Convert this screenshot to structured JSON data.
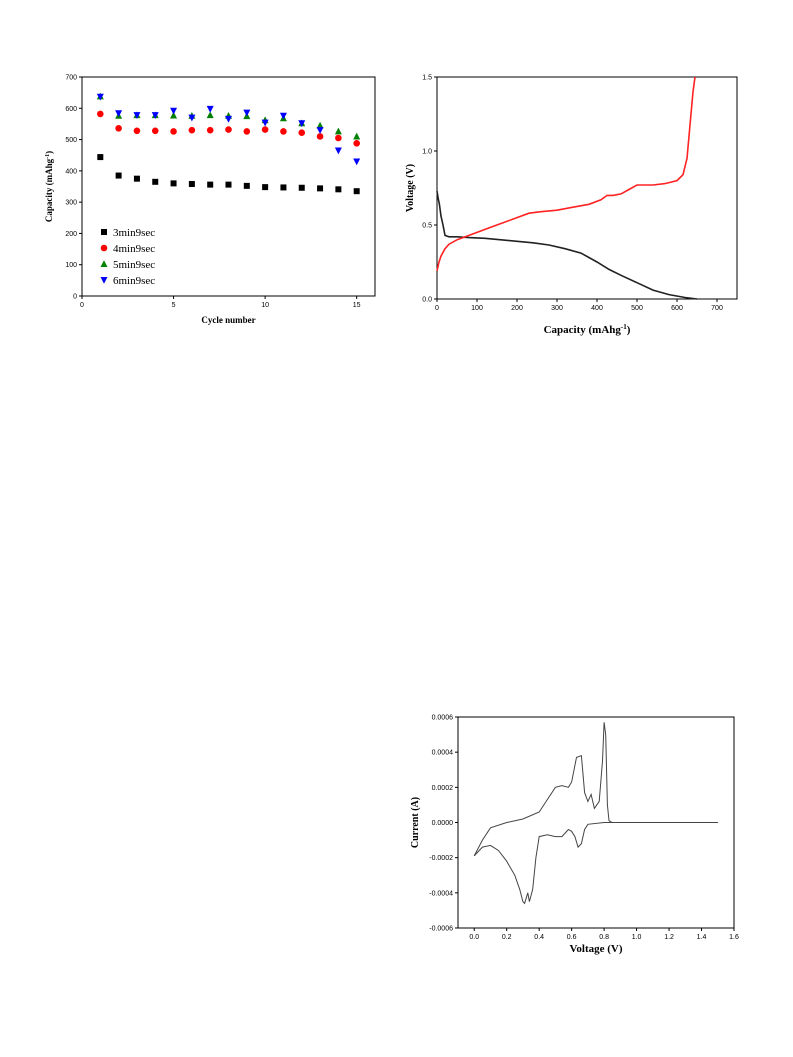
{
  "chart_data": [
    {
      "type": "scatter",
      "xlabel": "Cycle number",
      "ylabel": "Capacity (mAhg",
      "ylabel_sup": "-1",
      "ylabel_tail": ")",
      "xlim": [
        0,
        16
      ],
      "ylim": [
        0,
        700
      ],
      "xticks": [
        0,
        5,
        10,
        15
      ],
      "yticks": [
        0,
        100,
        200,
        300,
        400,
        500,
        600,
        700
      ],
      "legend_position": "bottom-left",
      "series": [
        {
          "name": "3min9sec",
          "marker": "square",
          "color": "#000000",
          "x": [
            1,
            2,
            3,
            4,
            5,
            6,
            7,
            8,
            9,
            10,
            11,
            12,
            13,
            14,
            15
          ],
          "y": [
            444,
            385,
            375,
            365,
            360,
            358,
            356,
            356,
            352,
            348,
            347,
            346,
            344,
            341,
            335
          ]
        },
        {
          "name": "4min9sec",
          "marker": "circle",
          "color": "#ff0000",
          "x": [
            1,
            2,
            3,
            4,
            5,
            6,
            7,
            8,
            9,
            10,
            11,
            12,
            13,
            14,
            15
          ],
          "y": [
            582,
            536,
            528,
            528,
            526,
            530,
            530,
            532,
            526,
            532,
            526,
            522,
            510,
            505,
            488
          ]
        },
        {
          "name": "5min9sec",
          "marker": "triangle-up",
          "color": "#008000",
          "x": [
            1,
            2,
            3,
            4,
            5,
            6,
            7,
            8,
            9,
            10,
            11,
            12,
            13,
            14,
            15
          ],
          "y": [
            638,
            576,
            578,
            578,
            577,
            576,
            578,
            576,
            575,
            562,
            568,
            552,
            545,
            526,
            510
          ]
        },
        {
          "name": "6min9sec",
          "marker": "triangle-down",
          "color": "#0000ff",
          "x": [
            1,
            2,
            3,
            4,
            5,
            6,
            7,
            8,
            9,
            10,
            11,
            12,
            13,
            14,
            15
          ],
          "y": [
            637,
            584,
            578,
            578,
            592,
            570,
            598,
            566,
            586,
            554,
            576,
            552,
            530,
            465,
            430
          ]
        }
      ]
    },
    {
      "type": "line",
      "xlabel": "Capacity (mAhg",
      "xlabel_sup": "-1",
      "xlabel_tail": ")",
      "ylabel": "Voltage (V)",
      "xlim": [
        0,
        750
      ],
      "ylim": [
        0,
        1.5
      ],
      "xticks": [
        0,
        100,
        200,
        300,
        400,
        500,
        600,
        700
      ],
      "yticks": [
        0.0,
        0.5,
        1.0,
        1.5
      ],
      "series": [
        {
          "color": "#222222",
          "x": [
            0,
            3,
            6,
            10,
            15,
            20,
            30,
            50,
            80,
            120,
            160,
            200,
            240,
            280,
            320,
            360,
            400,
            430,
            460,
            500,
            540,
            580,
            620,
            650
          ],
          "y": [
            0.73,
            0.68,
            0.64,
            0.56,
            0.5,
            0.43,
            0.42,
            0.42,
            0.415,
            0.41,
            0.4,
            0.39,
            0.38,
            0.365,
            0.34,
            0.31,
            0.25,
            0.2,
            0.16,
            0.11,
            0.06,
            0.03,
            0.01,
            0.0
          ]
        },
        {
          "color": "#ff2222",
          "x": [
            0,
            5,
            10,
            20,
            30,
            50,
            80,
            120,
            160,
            200,
            230,
            260,
            300,
            340,
            380,
            410,
            425,
            440,
            460,
            480,
            500,
            515,
            540,
            570,
            600,
            615,
            625,
            630,
            635,
            640,
            645
          ],
          "y": [
            0.19,
            0.25,
            0.29,
            0.34,
            0.37,
            0.4,
            0.43,
            0.47,
            0.51,
            0.55,
            0.58,
            0.59,
            0.6,
            0.62,
            0.64,
            0.67,
            0.7,
            0.7,
            0.71,
            0.74,
            0.77,
            0.77,
            0.77,
            0.78,
            0.8,
            0.84,
            0.95,
            1.1,
            1.25,
            1.4,
            1.5
          ]
        }
      ]
    },
    {
      "type": "line",
      "xlabel": "Voltage (V)",
      "ylabel": "Current (A)",
      "xlim": [
        -0.1,
        1.6
      ],
      "ylim": [
        -0.0006,
        0.0006
      ],
      "xticks": [
        0.0,
        0.2,
        0.4,
        0.6,
        0.8,
        1.0,
        1.2,
        1.4,
        1.6
      ],
      "xtick_labels": [
        "0.0",
        "0.2",
        "0.4",
        "0.6",
        "0.8",
        "1.0",
        "1.2",
        "1.4",
        "1.6"
      ],
      "yticks": [
        -0.0006,
        -0.0004,
        -0.0002,
        0.0,
        0.0002,
        0.0004,
        0.0006
      ],
      "ytick_labels": [
        "-0.0006",
        "-0.0004",
        "-0.0002",
        "0.0000",
        "0.0002",
        "0.0004",
        "0.0006"
      ],
      "series": [
        {
          "color": "#444444",
          "x": [
            0.0,
            0.05,
            0.1,
            0.2,
            0.3,
            0.4,
            0.45,
            0.5,
            0.54,
            0.58,
            0.6,
            0.63,
            0.66,
            0.68,
            0.7,
            0.72,
            0.74,
            0.77,
            0.79,
            0.8,
            0.81,
            0.82,
            0.83,
            0.85,
            0.9,
            1.0,
            1.2,
            1.5
          ],
          "y": [
            -0.00019,
            -0.0001,
            -3e-05,
            0.0,
            2e-05,
            6e-05,
            0.00013,
            0.0002,
            0.00021,
            0.0002,
            0.00023,
            0.00037,
            0.00038,
            0.00017,
            0.00012,
            0.00016,
            8e-05,
            0.00012,
            0.00035,
            0.00057,
            0.0005,
            0.0001,
            1e-05,
            0.0,
            0.0,
            0.0,
            0.0,
            0.0
          ]
        },
        {
          "color": "#444444",
          "x": [
            1.5,
            1.2,
            1.0,
            0.9,
            0.85,
            0.8,
            0.7,
            0.68,
            0.66,
            0.64,
            0.62,
            0.6,
            0.58,
            0.56,
            0.54,
            0.5,
            0.45,
            0.4,
            0.38,
            0.36,
            0.34,
            0.33,
            0.31,
            0.3,
            0.28,
            0.25,
            0.2,
            0.15,
            0.1,
            0.05,
            0.0
          ],
          "y": [
            0.0,
            0.0,
            0.0,
            0.0,
            0.0,
            0.0,
            -1e-05,
            -4e-05,
            -0.00012,
            -0.00014,
            -8e-05,
            -5e-05,
            -4e-05,
            -6e-05,
            -8e-05,
            -8e-05,
            -7e-05,
            -8e-05,
            -0.0002,
            -0.00038,
            -0.00045,
            -0.0004,
            -0.00046,
            -0.00045,
            -0.00038,
            -0.0003,
            -0.00022,
            -0.00016,
            -0.00013,
            -0.00014,
            -0.00019
          ]
        }
      ]
    }
  ]
}
